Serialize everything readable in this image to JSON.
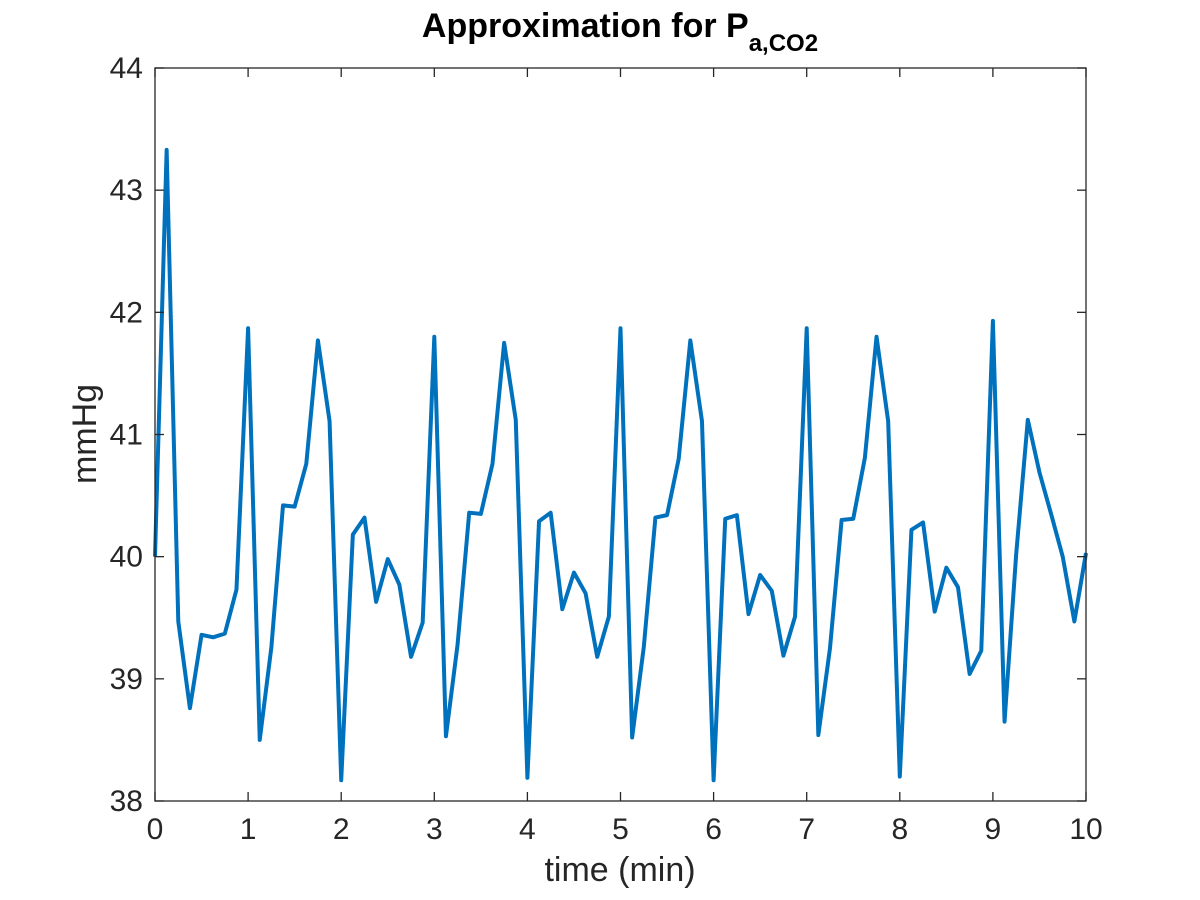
{
  "chart_data": {
    "type": "line",
    "title": "Approximation for P",
    "title_subscript": "a,CO2",
    "xlabel": "time (min)",
    "ylabel": "mmHg",
    "xlim": [
      0,
      10
    ],
    "ylim": [
      38,
      44
    ],
    "xticks": [
      "0",
      "1",
      "2",
      "3",
      "4",
      "5",
      "6",
      "7",
      "8",
      "9",
      "10"
    ],
    "yticks": [
      "38",
      "39",
      "40",
      "41",
      "42",
      "43",
      "44"
    ],
    "grid": false,
    "box": true,
    "line_color": "#0072BD",
    "series": [
      {
        "x": [
          0,
          0.125,
          0.25,
          0.375,
          0.5,
          0.625,
          0.75,
          0.875,
          1.0,
          1.125,
          1.25,
          1.375,
          1.5,
          1.625,
          1.75,
          1.875,
          2.0,
          2.125,
          2.25,
          2.375,
          2.5,
          2.625,
          2.75,
          2.875,
          3.0,
          3.125,
          3.25,
          3.375,
          3.5,
          3.625,
          3.75,
          3.875,
          4.0,
          4.125,
          4.25,
          4.375,
          4.5,
          4.625,
          4.75,
          4.875,
          5.0,
          5.125,
          5.25,
          5.375,
          5.5,
          5.625,
          5.75,
          5.875,
          6.0,
          6.125,
          6.25,
          6.375,
          6.5,
          6.625,
          6.75,
          6.875,
          7.0,
          7.125,
          7.25,
          7.375,
          7.5,
          7.625,
          7.75,
          7.875,
          8.0,
          8.125,
          8.25,
          8.375,
          8.5,
          8.625,
          8.75,
          8.875,
          9.0,
          9.125,
          9.25,
          9.375,
          9.5,
          9.625,
          9.75,
          9.875,
          10.0
        ],
        "y": [
          40.0,
          43.33,
          39.47,
          38.76,
          39.36,
          39.34,
          39.37,
          39.73,
          41.87,
          38.5,
          39.26,
          40.42,
          40.41,
          40.76,
          41.77,
          41.11,
          38.17,
          40.18,
          40.32,
          39.63,
          39.98,
          39.77,
          39.18,
          39.46,
          41.8,
          38.53,
          39.28,
          40.36,
          40.35,
          40.76,
          41.75,
          41.12,
          38.19,
          40.29,
          40.36,
          39.57,
          39.87,
          39.7,
          39.18,
          39.51,
          41.87,
          38.52,
          39.26,
          40.32,
          40.34,
          40.8,
          41.77,
          41.11,
          38.17,
          40.31,
          40.34,
          39.53,
          39.85,
          39.72,
          39.19,
          39.51,
          41.87,
          38.54,
          39.25,
          40.3,
          40.31,
          40.81,
          41.8,
          41.11,
          38.2,
          40.22,
          40.28,
          39.55,
          39.91,
          39.75,
          39.04,
          39.23,
          41.93,
          38.65,
          40.02,
          41.12,
          40.69,
          40.35,
          40.0,
          39.47,
          40.03
        ]
      }
    ]
  }
}
